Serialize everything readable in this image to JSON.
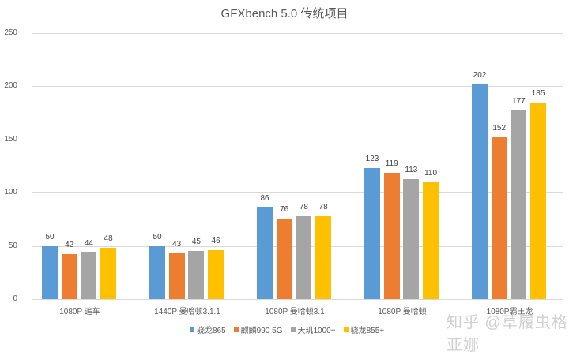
{
  "chart_data": {
    "type": "bar",
    "title": "GFXbench 5.0 传统项目",
    "xlabel": "",
    "ylabel": "",
    "ylim": [
      0,
      250
    ],
    "yticks": [
      0,
      50,
      100,
      150,
      200,
      250
    ],
    "grid": true,
    "legend_position": "bottom",
    "categories": [
      "1080P 追车",
      "1440P 曼哈顿3.1.1",
      "1080P 曼哈顿3.1",
      "1080P 曼哈顿",
      "1080P霸王龙"
    ],
    "series": [
      {
        "name": "骁龙865",
        "color": "#5b9bd5",
        "values": [
          50,
          50,
          86,
          123,
          202
        ]
      },
      {
        "name": "麒麟990 5G",
        "color": "#ed7d31",
        "values": [
          42,
          43,
          76,
          119,
          152
        ]
      },
      {
        "name": "天玑1000+",
        "color": "#a5a5a5",
        "values": [
          44,
          45,
          78,
          113,
          177
        ]
      },
      {
        "name": "骁龙855+",
        "color": "#ffc000",
        "values": [
          48,
          46,
          78,
          110,
          185
        ]
      }
    ]
  },
  "watermark": "知乎 @草履虫格亚娜"
}
